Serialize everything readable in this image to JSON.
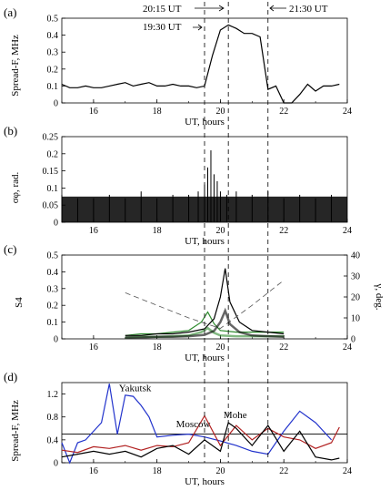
{
  "annotations": {
    "t1": "20:15 UT",
    "t2": "19:30 UT",
    "t3": "21:30 UT"
  },
  "vlines_hours": [
    19.5,
    20.25,
    21.5
  ],
  "chart_data": [
    {
      "panel": "(a)",
      "type": "line",
      "xlabel": "UT, hours",
      "ylabel": "Spread-F, MHz",
      "xlim": [
        15,
        24
      ],
      "ylim": [
        0,
        0.5
      ],
      "xticks": [
        16,
        18,
        20,
        22,
        24
      ],
      "yticks": [
        0,
        0.1,
        0.2,
        0.3,
        0.4,
        0.5
      ],
      "ytick_labels": [
        "0",
        "0.1",
        "0.2",
        "0.3",
        "0.4",
        "0.5"
      ],
      "series": [
        {
          "color": "#000000",
          "x": [
            15,
            15.25,
            15.5,
            15.75,
            16,
            16.25,
            16.5,
            16.75,
            17,
            17.25,
            17.5,
            17.75,
            18,
            18.25,
            18.5,
            18.75,
            19,
            19.25,
            19.5,
            19.75,
            20,
            20.25,
            20.5,
            20.75,
            21,
            21.25,
            21.5,
            21.75,
            22,
            22.25,
            22.5,
            22.75,
            23,
            23.25,
            23.5,
            23.75
          ],
          "y": [
            0.11,
            0.09,
            0.09,
            0.1,
            0.09,
            0.09,
            0.1,
            0.11,
            0.12,
            0.1,
            0.11,
            0.12,
            0.1,
            0.1,
            0.11,
            0.1,
            0.1,
            0.09,
            0.1,
            0.28,
            0.43,
            0.46,
            0.44,
            0.41,
            0.41,
            0.39,
            0.08,
            0.1,
            0.0,
            0.0,
            0.05,
            0.11,
            0.07,
            0.1,
            0.1,
            0.11
          ]
        }
      ]
    },
    {
      "panel": "(b)",
      "type": "bar",
      "xlabel": "UT, hours",
      "ylabel": "σφ, rad.",
      "xlim": [
        15,
        24
      ],
      "ylim": [
        0,
        0.25
      ],
      "xticks": [
        16,
        18,
        20,
        22,
        24
      ],
      "yticks": [
        0,
        0.05,
        0.1,
        0.15,
        0.2,
        0.25
      ],
      "ytick_labels": [
        "0",
        "0.05",
        "0.1",
        "0.15",
        "0.2",
        "0.25"
      ],
      "series": [
        {
          "color": "#000000",
          "x": [
            15.0,
            15.5,
            16.0,
            16.5,
            17.0,
            17.5,
            18.0,
            18.5,
            19.0,
            19.3,
            19.5,
            19.6,
            19.7,
            19.8,
            19.9,
            20.0,
            20.2,
            20.5,
            21.0,
            21.5,
            22.0,
            22.5,
            23.0,
            23.5
          ],
          "y": [
            0.08,
            0.07,
            0.07,
            0.08,
            0.07,
            0.09,
            0.07,
            0.08,
            0.08,
            0.09,
            0.11,
            0.16,
            0.21,
            0.14,
            0.12,
            0.09,
            0.08,
            0.09,
            0.08,
            0.09,
            0.07,
            0.08,
            0.07,
            0.08
          ]
        }
      ]
    },
    {
      "panel": "(c)",
      "type": "line",
      "xlabel": "UT, hours",
      "ylabel": "S4",
      "y2label": "γ, deg.",
      "xlim": [
        15,
        24
      ],
      "ylim": [
        0,
        0.5
      ],
      "y2lim": [
        0,
        40
      ],
      "xticks": [
        16,
        18,
        20,
        22,
        24
      ],
      "yticks": [
        0,
        0.1,
        0.2,
        0.3,
        0.4,
        0.5
      ],
      "ytick_labels": [
        "0",
        "0.1",
        "0.2",
        "0.3",
        "0.4",
        "0.5"
      ],
      "y2ticks": [
        0,
        10,
        20,
        30,
        40
      ],
      "series": [
        {
          "color": "#2e8b2e",
          "x": [
            17.0,
            17.5,
            18.0,
            18.5,
            19.0,
            19.4,
            19.6,
            19.8,
            20.0,
            20.5,
            21.0,
            21.5,
            22.0
          ],
          "y": [
            0.02,
            0.03,
            0.03,
            0.04,
            0.05,
            0.1,
            0.16,
            0.09,
            0.05,
            0.04,
            0.04,
            0.04,
            0.04
          ]
        },
        {
          "color": "#000000",
          "x": [
            17.0,
            17.5,
            18.0,
            18.5,
            19.0,
            19.5,
            19.8,
            20.0,
            20.15,
            20.3,
            20.6,
            21.0,
            21.5,
            22.0
          ],
          "y": [
            0.02,
            0.02,
            0.03,
            0.03,
            0.04,
            0.06,
            0.12,
            0.25,
            0.42,
            0.22,
            0.1,
            0.05,
            0.04,
            0.03
          ]
        },
        {
          "color": "#555555",
          "axis": "y2",
          "x": [
            17.0,
            18.0,
            19.0,
            20.0,
            21.0,
            22.0
          ],
          "y": [
            22,
            16,
            10,
            5,
            16,
            28
          ]
        }
      ]
    },
    {
      "panel": "(d)",
      "type": "line",
      "xlabel": "UT, hours",
      "ylabel": "Spread-F, MHz",
      "xlim": [
        15,
        24
      ],
      "ylim": [
        0,
        1.4
      ],
      "xticks": [
        16,
        18,
        20,
        22,
        24
      ],
      "yticks": [
        0,
        0.4,
        0.8,
        1.2
      ],
      "ytick_labels": [
        "0",
        "0.4",
        "0.8",
        "1.2"
      ],
      "hline": 0.5,
      "series": [
        {
          "name": "Yakutsk",
          "color": "#2233cc",
          "x": [
            15,
            15.25,
            15.5,
            15.75,
            16,
            16.25,
            16.5,
            16.75,
            17,
            17.25,
            17.5,
            17.75,
            18,
            18.5,
            19,
            19.5,
            20,
            20.5,
            21,
            21.5,
            22,
            22.5,
            23,
            23.5
          ],
          "y": [
            0.35,
            0.0,
            0.35,
            0.4,
            0.55,
            0.7,
            1.38,
            0.5,
            1.18,
            1.16,
            1.0,
            0.8,
            0.45,
            0.48,
            0.5,
            0.45,
            0.38,
            0.3,
            0.2,
            0.15,
            0.55,
            0.9,
            0.7,
            0.4
          ]
        },
        {
          "name": "Moscow",
          "color": "#b22222",
          "x": [
            15,
            15.5,
            16,
            16.5,
            17,
            17.5,
            18,
            18.5,
            19,
            19.5,
            20,
            20.5,
            21,
            21.5,
            22,
            22.5,
            23,
            23.5,
            23.75
          ],
          "y": [
            0.22,
            0.18,
            0.28,
            0.25,
            0.3,
            0.22,
            0.3,
            0.28,
            0.35,
            0.82,
            0.3,
            0.65,
            0.4,
            0.6,
            0.45,
            0.4,
            0.25,
            0.35,
            0.62
          ]
        },
        {
          "name": "Mohe",
          "color": "#000000",
          "x": [
            15,
            15.5,
            16,
            16.5,
            17,
            17.5,
            18,
            18.5,
            19,
            19.5,
            20,
            20.25,
            20.5,
            21,
            21.5,
            22,
            22.5,
            23,
            23.5,
            23.75
          ],
          "y": [
            0.1,
            0.15,
            0.2,
            0.15,
            0.2,
            0.1,
            0.25,
            0.3,
            0.15,
            0.4,
            0.2,
            0.7,
            0.6,
            0.3,
            0.65,
            0.2,
            0.55,
            0.1,
            0.05,
            0.08
          ]
        }
      ]
    }
  ]
}
